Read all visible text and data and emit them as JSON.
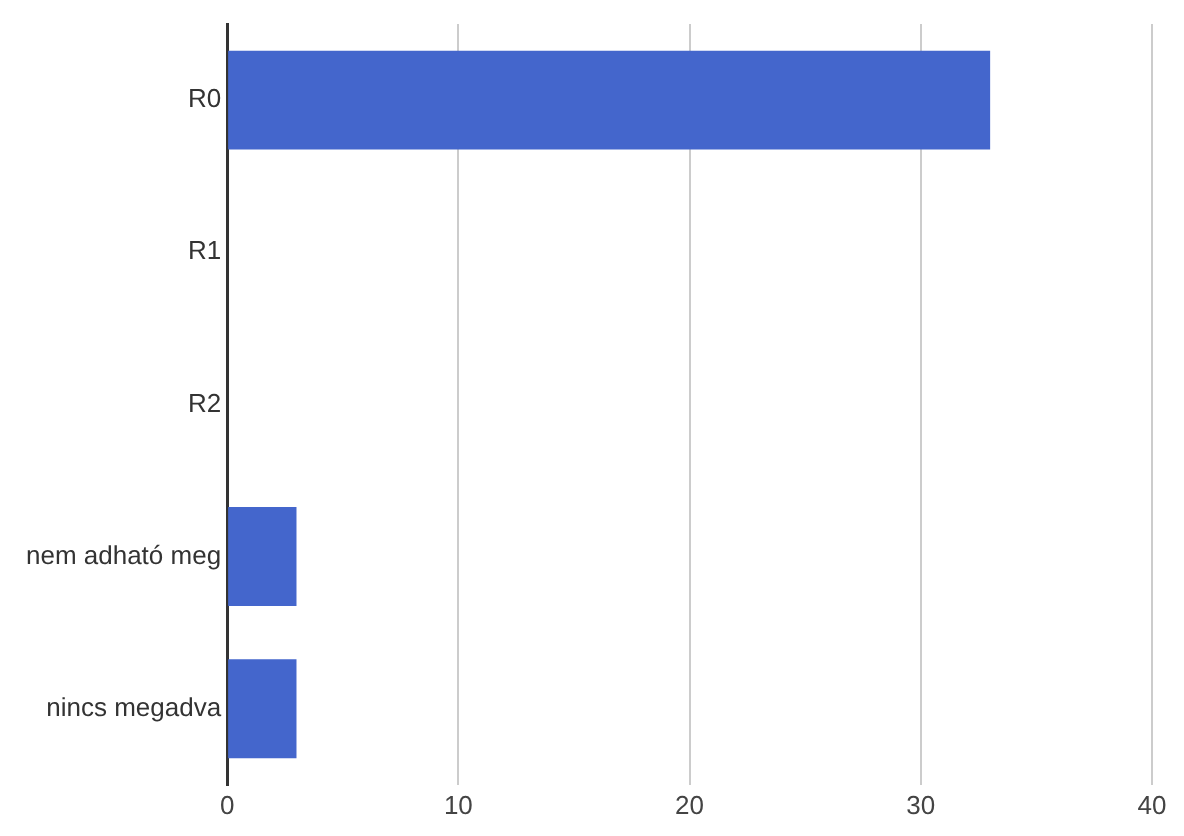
{
  "chart_data": {
    "type": "bar",
    "orientation": "horizontal",
    "categories": [
      "R0",
      "R1",
      "R2",
      "nem adható meg",
      "nincs megadva"
    ],
    "values": [
      33,
      0,
      0,
      3,
      3
    ],
    "color": "#4466cc",
    "xlim": [
      0,
      40
    ],
    "xticks": [
      0,
      10,
      20,
      30,
      40
    ],
    "grid": "x",
    "legend": false
  }
}
